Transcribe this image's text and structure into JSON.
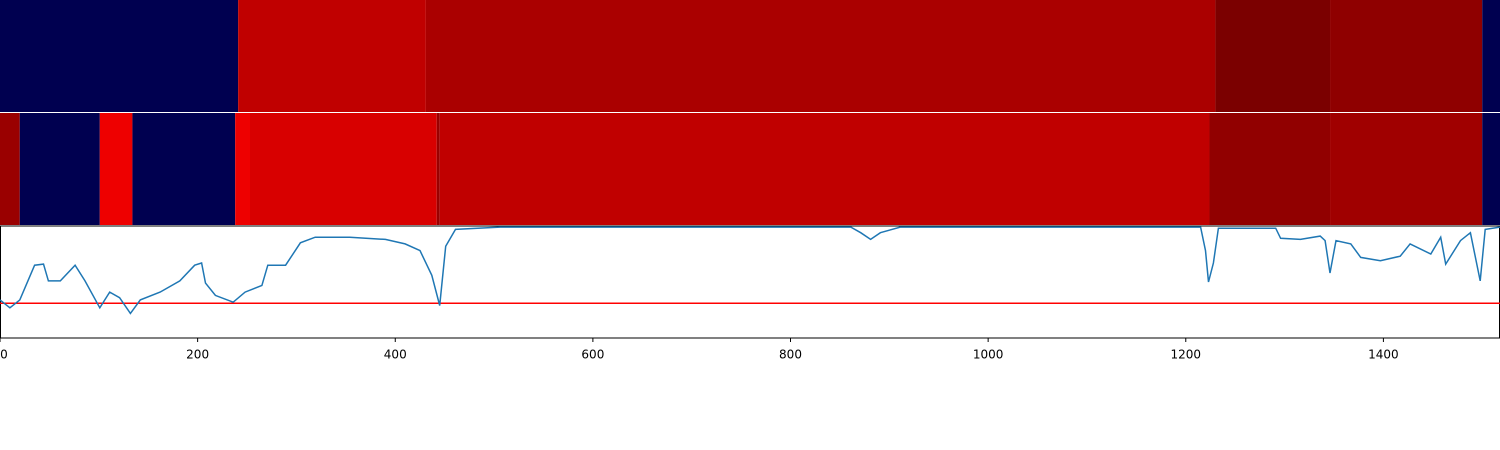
{
  "chart_data": {
    "type": "strip-line",
    "xlim": [
      0,
      1518
    ],
    "xticks": [
      0,
      200,
      400,
      600,
      800,
      1000,
      1200,
      1400
    ],
    "strips": [
      {
        "segments": [
          {
            "start": 0,
            "end": 241,
            "color": "#000050"
          },
          {
            "start": 241,
            "end": 431,
            "color": "#c00000"
          },
          {
            "start": 431,
            "end": 1230,
            "color": "#aa0000"
          },
          {
            "start": 1230,
            "end": 1346,
            "color": "#7b0000"
          },
          {
            "start": 1346,
            "end": 1500,
            "color": "#8f0000"
          },
          {
            "start": 1500,
            "end": 1518,
            "color": "#000050"
          }
        ]
      },
      {
        "segments": [
          {
            "start": 0,
            "end": 20,
            "color": "#9a0000"
          },
          {
            "start": 20,
            "end": 101,
            "color": "#000050"
          },
          {
            "start": 101,
            "end": 134,
            "color": "#ee0000"
          },
          {
            "start": 134,
            "end": 238,
            "color": "#000050"
          },
          {
            "start": 238,
            "end": 253,
            "color": "#ee0000"
          },
          {
            "start": 253,
            "end": 442,
            "color": "#d80000"
          },
          {
            "start": 442,
            "end": 445,
            "color": "#990000"
          },
          {
            "start": 445,
            "end": 1224,
            "color": "#c00000"
          },
          {
            "start": 1224,
            "end": 1346,
            "color": "#910000"
          },
          {
            "start": 1346,
            "end": 1500,
            "color": "#a00000"
          },
          {
            "start": 1500,
            "end": 1518,
            "color": "#000050"
          }
        ]
      }
    ],
    "ylim": [
      0,
      1
    ],
    "threshold": 0.31,
    "threshold_color": "#ff0000",
    "series": [
      {
        "color": "#1f77b4",
        "x": [
          0,
          10,
          20,
          35,
          44,
          49,
          61,
          76,
          86,
          101,
          111,
          121,
          132,
          142,
          162,
          182,
          197,
          204,
          208,
          218,
          236,
          248,
          265,
          271,
          289,
          304,
          319,
          354,
          390,
          410,
          425,
          437,
          445,
          451,
          461,
          506,
          861,
          871,
          881,
          891,
          911,
          1215,
          1220,
          1223,
          1228,
          1233,
          1291,
          1296,
          1316,
          1336,
          1341,
          1346,
          1352,
          1367,
          1377,
          1397,
          1417,
          1427,
          1448,
          1458,
          1463,
          1478,
          1488,
          1498,
          1503,
          1518
        ],
        "values": [
          0.34,
          0.27,
          0.34,
          0.65,
          0.66,
          0.51,
          0.51,
          0.65,
          0.51,
          0.27,
          0.41,
          0.36,
          0.22,
          0.34,
          0.41,
          0.51,
          0.65,
          0.67,
          0.49,
          0.38,
          0.32,
          0.41,
          0.47,
          0.65,
          0.65,
          0.85,
          0.9,
          0.9,
          0.88,
          0.84,
          0.78,
          0.56,
          0.29,
          0.82,
          0.97,
          0.99,
          0.99,
          0.94,
          0.88,
          0.94,
          0.99,
          0.99,
          0.78,
          0.5,
          0.67,
          0.98,
          0.98,
          0.89,
          0.88,
          0.91,
          0.87,
          0.58,
          0.87,
          0.84,
          0.72,
          0.69,
          0.73,
          0.84,
          0.75,
          0.9,
          0.66,
          0.87,
          0.94,
          0.51,
          0.97,
          0.99
        ]
      }
    ]
  }
}
